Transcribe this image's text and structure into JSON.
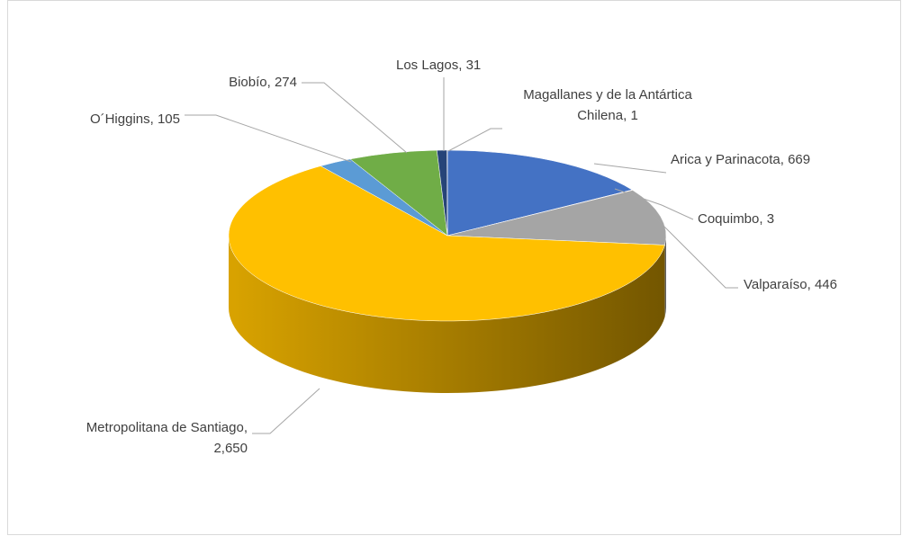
{
  "chart_data": {
    "type": "pie3d",
    "categories": [
      "Arica y Parinacota",
      "Coquimbo",
      "Valparaíso",
      "Metropolitana de Santiago",
      "O´Higgins",
      "Biobío",
      "Los Lagos",
      "Magallanes y de la Antártica Chilena"
    ],
    "values": [
      669,
      3,
      446,
      2650,
      105,
      274,
      31,
      1
    ],
    "value_labels": [
      "669",
      "3",
      "446",
      "2,650",
      "105",
      "274",
      "31",
      "1"
    ],
    "label_separator": ", ",
    "colors": [
      "#4472c4",
      "#ed7d31",
      "#a5a5a5",
      "#ffc000",
      "#5b9bd5",
      "#70ad47",
      "#264478",
      "#9e480e"
    ]
  }
}
